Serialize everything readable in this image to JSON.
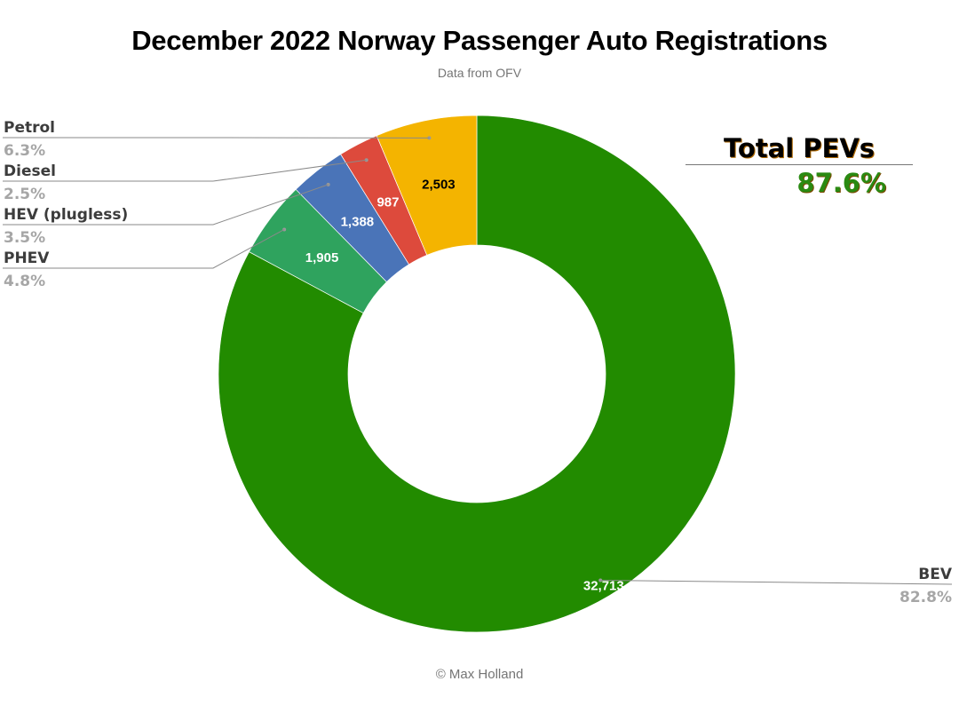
{
  "chart_data": {
    "type": "pie",
    "variant": "donut",
    "title": "December 2022 Norway Passenger Auto Registrations",
    "subtitle": "Data from OFV",
    "footer": "© Max Holland",
    "slices": [
      {
        "name": "BEV",
        "value": 32713,
        "value_label": "32,713",
        "percent_label": "82.8%",
        "color": "#228b00",
        "value_label_color": "#ffffff"
      },
      {
        "name": "PHEV",
        "value": 1905,
        "value_label": "1,905",
        "percent_label": "4.8%",
        "color": "#2fa35e",
        "value_label_color": "#ffffff"
      },
      {
        "name": "HEV (plugless)",
        "value": 1388,
        "value_label": "1,388",
        "percent_label": "3.5%",
        "color": "#4a74b8",
        "value_label_color": "#ffffff"
      },
      {
        "name": "Diesel",
        "value": 987,
        "value_label": "987",
        "percent_label": "2.5%",
        "color": "#dd4a3c",
        "value_label_color": "#ffffff"
      },
      {
        "name": "Petrol",
        "value": 2503,
        "value_label": "2,503",
        "percent_label": "6.3%",
        "color": "#f4b400",
        "value_label_color": "#000000"
      }
    ],
    "annotation": {
      "label": "Total PEVs",
      "value": "87.6%"
    }
  }
}
